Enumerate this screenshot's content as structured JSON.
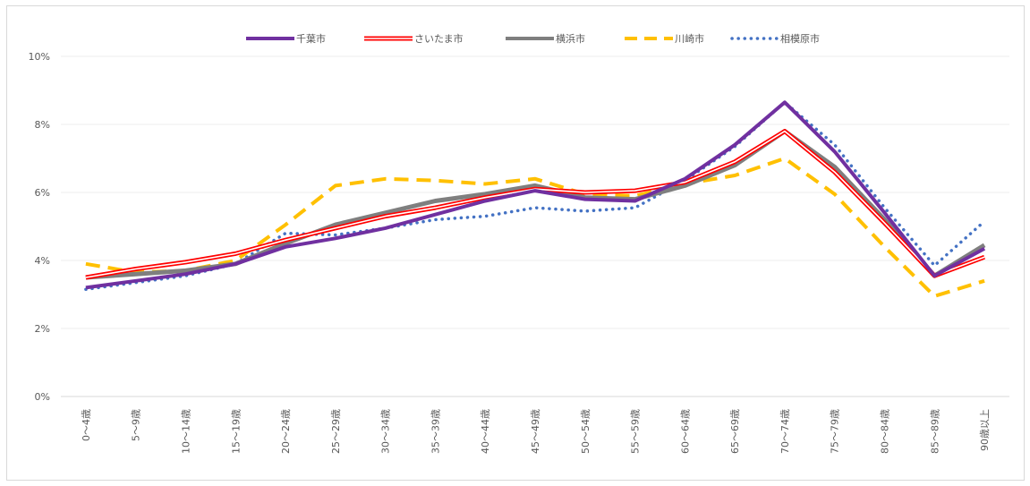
{
  "chart_data": {
    "type": "line",
    "title": "",
    "xlabel": "",
    "ylabel": "",
    "ylim": [
      0,
      10
    ],
    "y_ticks": [
      "0%",
      "2%",
      "4%",
      "6%",
      "8%",
      "10%"
    ],
    "y_tick_values": [
      0,
      2,
      4,
      6,
      8,
      10
    ],
    "grid": true,
    "legend_position": "top",
    "categories": [
      "0～4歳",
      "5～9歳",
      "10～14歳",
      "15～19歳",
      "20～24歳",
      "25～29歳",
      "30～34歳",
      "35～39歳",
      "40～44歳",
      "45～49歳",
      "50～54歳",
      "55～59歳",
      "60～64歳",
      "65～69歳",
      "70～74歳",
      "75～79歳",
      "80～84歳",
      "85～89歳",
      "90歳以上"
    ],
    "series": [
      {
        "name": "千葉市",
        "color": "#7030a0",
        "style": "solid",
        "values": [
          3.2,
          3.4,
          3.6,
          3.9,
          4.4,
          4.65,
          4.95,
          5.35,
          5.75,
          6.05,
          5.8,
          5.75,
          6.4,
          7.4,
          8.65,
          7.2,
          5.4,
          3.55,
          4.35
        ]
      },
      {
        "name": "さいたま市",
        "color": "#ff0000",
        "style": "double",
        "values": [
          3.5,
          3.75,
          3.95,
          4.2,
          4.6,
          4.95,
          5.3,
          5.55,
          5.85,
          6.1,
          6.0,
          6.05,
          6.3,
          6.9,
          7.8,
          6.6,
          5.1,
          3.55,
          4.1
        ]
      },
      {
        "name": "横浜市",
        "color": "#7f7f7f",
        "style": "solid",
        "values": [
          3.5,
          3.6,
          3.7,
          3.9,
          4.5,
          5.05,
          5.4,
          5.75,
          5.95,
          6.2,
          5.85,
          5.8,
          6.2,
          6.8,
          7.8,
          6.75,
          5.2,
          3.55,
          4.45
        ]
      },
      {
        "name": "川崎市",
        "color": "#ffc000",
        "style": "dash",
        "values": [
          3.9,
          3.65,
          3.7,
          4.0,
          5.05,
          6.2,
          6.4,
          6.35,
          6.25,
          6.4,
          5.95,
          5.9,
          6.25,
          6.5,
          7.0,
          5.95,
          4.4,
          2.95,
          3.4
        ]
      },
      {
        "name": "相模原市",
        "color": "#4472c4",
        "style": "dot",
        "values": [
          3.15,
          3.35,
          3.55,
          3.9,
          4.8,
          4.75,
          4.95,
          5.2,
          5.3,
          5.55,
          5.45,
          5.55,
          6.35,
          7.35,
          8.65,
          7.4,
          5.55,
          3.85,
          5.15
        ]
      }
    ]
  }
}
